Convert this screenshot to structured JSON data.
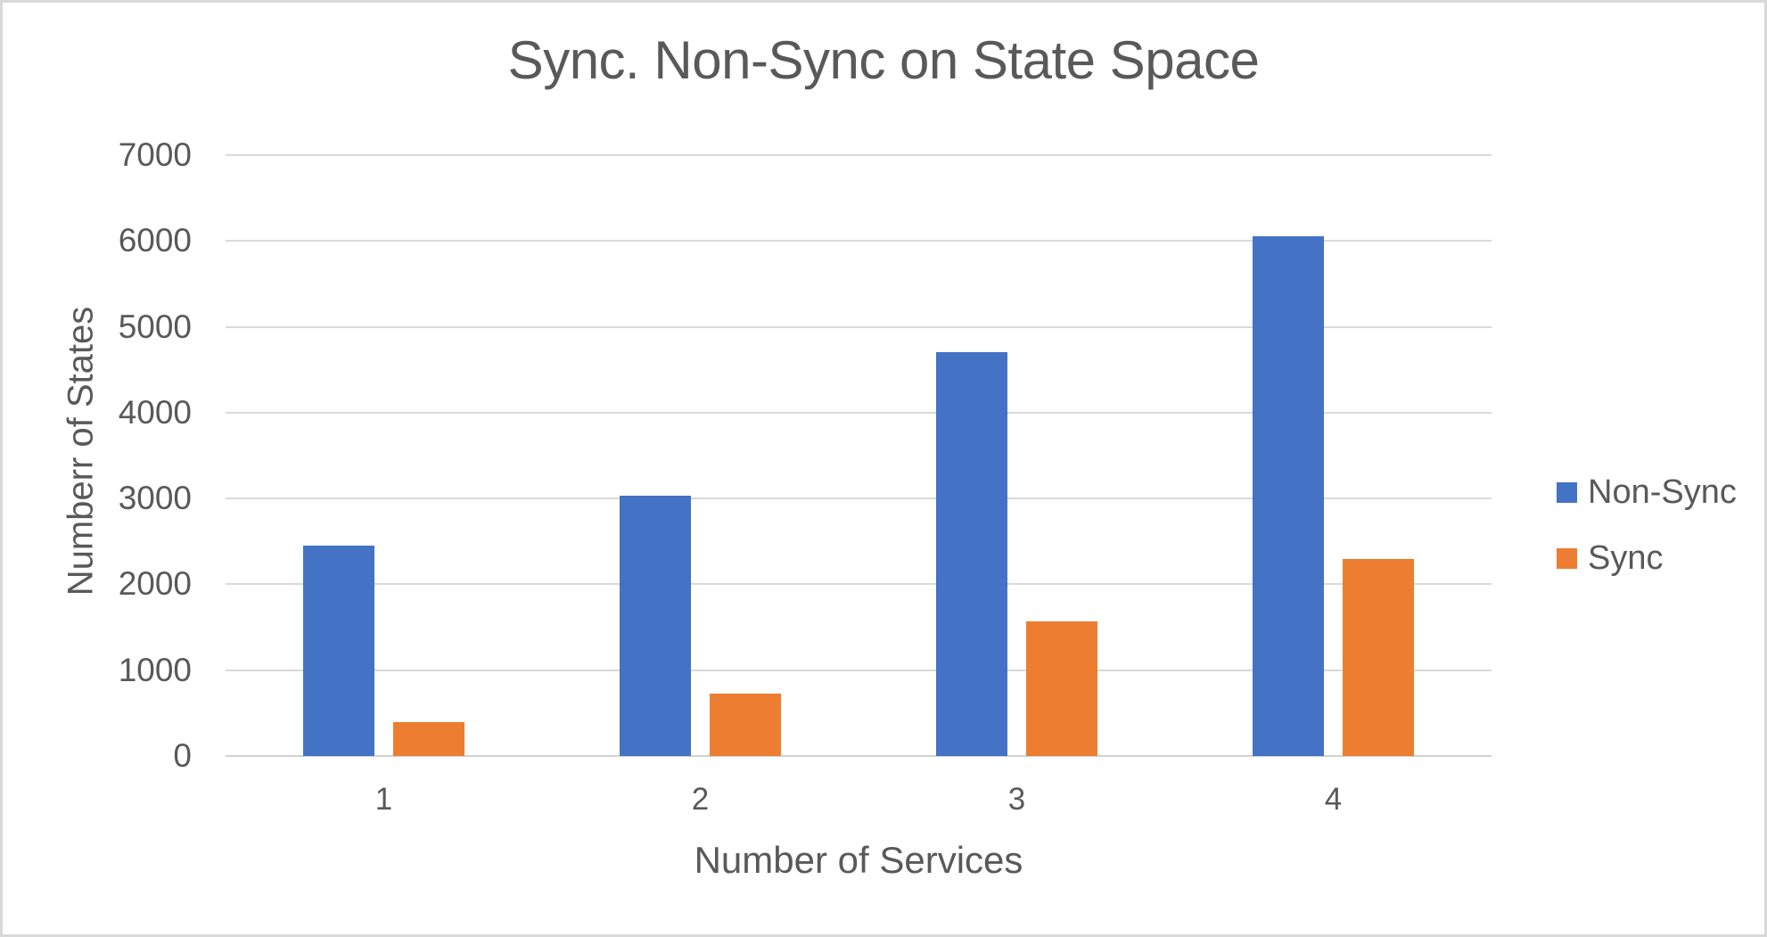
{
  "window": {
    "background_color": "#ffffff",
    "border_color": "#d9d9d9"
  },
  "chart_data": {
    "type": "bar",
    "title": "Sync. Non-Sync on State Space",
    "categories": [
      "1",
      "2",
      "3",
      "4"
    ],
    "series": [
      {
        "name": "Non-Sync",
        "color": "#4472C4",
        "values": [
          2450,
          3030,
          4700,
          6050
        ]
      },
      {
        "name": "Sync",
        "color": "#ED7D31",
        "values": [
          390,
          730,
          1570,
          2300
        ]
      }
    ],
    "xlabel": "Number of Services",
    "ylabel": "Numberr of States",
    "ylim": [
      0,
      7000
    ],
    "ytick_step": 1000,
    "yticks": [
      0,
      1000,
      2000,
      3000,
      4000,
      5000,
      6000,
      7000
    ],
    "grid": true,
    "legend_position": "right",
    "text_color": "#595959",
    "gridline_color": "#D9D9D9"
  }
}
